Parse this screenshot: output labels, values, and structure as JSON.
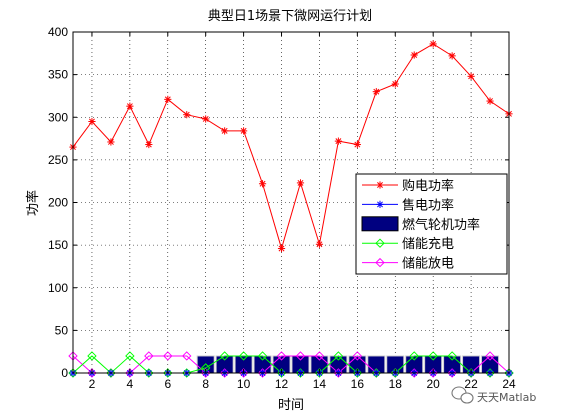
{
  "chart_data": {
    "type": "line",
    "title": "典型日1场景下微网运行计划",
    "xlabel": "时间",
    "ylabel": "功率",
    "xlim": [
      1,
      24
    ],
    "ylim": [
      0,
      400
    ],
    "x_ticks": [
      2,
      4,
      6,
      8,
      10,
      12,
      14,
      16,
      18,
      20,
      22,
      24
    ],
    "y_ticks": [
      0,
      50,
      100,
      150,
      200,
      250,
      300,
      350,
      400
    ],
    "grid": true,
    "legend_position": "right",
    "x": [
      1,
      2,
      3,
      4,
      5,
      6,
      7,
      8,
      9,
      10,
      11,
      12,
      13,
      14,
      15,
      16,
      17,
      18,
      19,
      20,
      21,
      22,
      23,
      24
    ],
    "series": [
      {
        "name": "购电功率",
        "kind": "line",
        "marker": "star",
        "color": "#ff0000",
        "values": [
          265,
          295,
          271,
          313,
          268,
          321,
          303,
          298,
          284,
          284,
          222,
          146,
          223,
          151,
          272,
          268,
          330,
          339,
          373,
          386,
          372,
          348,
          319,
          304
        ]
      },
      {
        "name": "售电功率",
        "kind": "line",
        "marker": "star",
        "color": "#0000ff",
        "values": [
          0,
          0,
          0,
          0,
          0,
          0,
          0,
          0,
          0,
          0,
          0,
          0,
          0,
          0,
          0,
          0,
          0,
          0,
          0,
          0,
          0,
          0,
          0,
          0
        ]
      },
      {
        "name": "燃气轮机功率",
        "kind": "bar",
        "color": "#000080",
        "values": [
          0,
          0,
          0,
          0,
          0,
          0,
          0,
          20,
          20,
          20,
          20,
          20,
          20,
          20,
          20,
          20,
          20,
          20,
          20,
          20,
          20,
          20,
          20,
          0
        ]
      },
      {
        "name": "储能充电",
        "kind": "line",
        "marker": "diamond",
        "color": "#00ff00",
        "values": [
          0,
          20,
          0,
          20,
          0,
          0,
          0,
          6,
          20,
          20,
          20,
          0,
          0,
          0,
          20,
          0,
          0,
          0,
          20,
          20,
          20,
          0,
          0,
          0
        ]
      },
      {
        "name": "储能放电",
        "kind": "line",
        "marker": "diamond",
        "color": "#ff00ff",
        "values": [
          20,
          0,
          0,
          0,
          20,
          20,
          20,
          0,
          0,
          0,
          0,
          20,
          20,
          20,
          0,
          20,
          0,
          0,
          0,
          0,
          0,
          0,
          20,
          0
        ]
      }
    ]
  },
  "watermark": {
    "icon": "wechat-icon",
    "text": "天天Matlab"
  }
}
